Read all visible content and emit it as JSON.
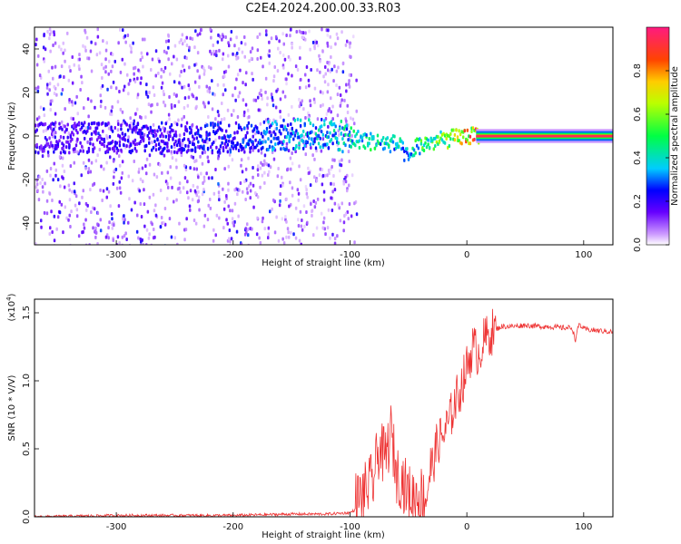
{
  "title": "C2E4.2024.200.00.33.R03",
  "colors": {
    "snr_line": "#ee3333",
    "spec_min": "#cc99ff",
    "spec_mid": "#00ff44",
    "spec_max": "#ff1a80"
  },
  "chart_data": [
    {
      "type": "heatmap",
      "title": "",
      "xlabel": "Height of straight line (km)",
      "ylabel": "Frequency (Hz)",
      "xlim": [
        -370,
        125
      ],
      "ylim": [
        -50,
        50
      ],
      "xticks": [
        -300,
        -200,
        -100,
        0,
        100
      ],
      "xtick_labels": [
        "-300",
        "-200",
        "-100",
        "0",
        "100"
      ],
      "yticks": [
        -40,
        -20,
        0,
        20,
        40
      ],
      "ytick_labels": [
        "-40",
        "-20",
        "0",
        "20",
        "40"
      ],
      "colorbar": {
        "label": "Normalized spectral amplitude",
        "range": [
          0,
          1
        ],
        "ticks": [
          0.0,
          0.2,
          0.4,
          0.6,
          0.8
        ],
        "tick_labels": [
          "0.0",
          "0.2",
          "0.4",
          "0.6",
          "0.8"
        ]
      },
      "ridge": {
        "x": [
          -370,
          -300,
          -200,
          -130,
          -100,
          -80,
          -60,
          -50,
          -45,
          -30,
          -10,
          0,
          10,
          125
        ],
        "freq": [
          0,
          0,
          0,
          2,
          0,
          -2,
          -3,
          -10,
          -4,
          -2,
          0,
          1,
          0,
          0
        ],
        "amplitude": [
          0.2,
          0.22,
          0.28,
          0.4,
          0.45,
          0.5,
          0.45,
          0.35,
          0.5,
          0.6,
          0.75,
          0.85,
          0.95,
          0.95
        ]
      },
      "noise_region_x": [
        -370,
        -95
      ]
    },
    {
      "type": "line",
      "title": "",
      "xlabel": "Height of straight line (km)",
      "ylabel": "SNR (10 * V/V)",
      "y_scale_label": "(x10",
      "y_scale_exponent": "4",
      "y_scale_close": ")",
      "xlim": [
        -370,
        125
      ],
      "ylim": [
        0,
        1.6
      ],
      "xticks": [
        -300,
        -200,
        -100,
        0,
        100
      ],
      "xtick_labels": [
        "-300",
        "-200",
        "-100",
        "0",
        "100"
      ],
      "yticks": [
        0.0,
        0.5,
        1.0,
        1.5
      ],
      "ytick_labels": [
        "0.0",
        "0.5",
        "1.0",
        "1.5"
      ],
      "series": [
        {
          "name": "SNR",
          "x": [
            -370,
            -300,
            -250,
            -200,
            -150,
            -120,
            -100,
            -90,
            -80,
            -75,
            -70,
            -65,
            -60,
            -55,
            -50,
            -45,
            -40,
            -35,
            -30,
            -25,
            -20,
            -15,
            -10,
            -5,
            0,
            5,
            10,
            15,
            20,
            25,
            30,
            40,
            50,
            60,
            70,
            80,
            90,
            93,
            96,
            100,
            110,
            125
          ],
          "values": [
            0.0,
            0.01,
            0.01,
            0.01,
            0.02,
            0.02,
            0.03,
            0.08,
            0.2,
            0.45,
            0.35,
            0.55,
            0.25,
            0.2,
            0.1,
            0.08,
            0.1,
            0.07,
            0.35,
            0.55,
            0.6,
            0.7,
            0.85,
            0.95,
            1.1,
            1.25,
            1.2,
            1.3,
            1.35,
            1.38,
            1.4,
            1.4,
            1.41,
            1.4,
            1.4,
            1.39,
            1.39,
            1.3,
            1.42,
            1.38,
            1.37,
            1.36
          ]
        }
      ]
    }
  ]
}
